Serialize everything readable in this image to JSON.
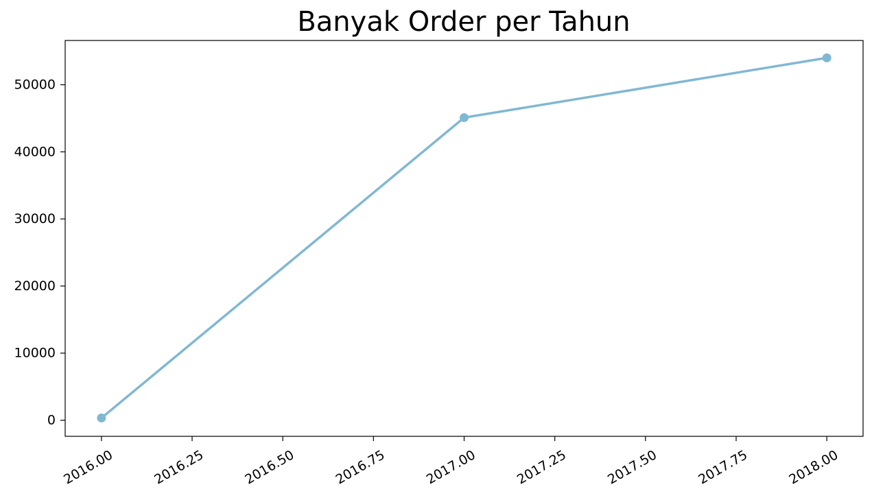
{
  "chart_data": {
    "type": "line",
    "title": "Banyak Order per Tahun",
    "xlabel": "",
    "ylabel": "",
    "x": [
      2016,
      2017,
      2018
    ],
    "series": [
      {
        "values": [
          329,
          45101,
          54011
        ],
        "color": "#80b8d2"
      }
    ],
    "xlim": [
      2015.9,
      2018.1
    ],
    "ylim": [
      -2400,
      56600
    ],
    "x_ticks": [
      2016.0,
      2016.25,
      2016.5,
      2016.75,
      2017.0,
      2017.25,
      2017.5,
      2017.75,
      2018.0
    ],
    "x_tick_labels": [
      "2016.00",
      "2016.25",
      "2016.50",
      "2016.75",
      "2017.00",
      "2017.25",
      "2017.50",
      "2017.75",
      "2018.00"
    ],
    "y_ticks": [
      0,
      10000,
      20000,
      30000,
      40000,
      50000
    ],
    "y_tick_labels": [
      "0",
      "10000",
      "20000",
      "30000",
      "40000",
      "50000"
    ],
    "grid": false,
    "marker": "circle"
  }
}
